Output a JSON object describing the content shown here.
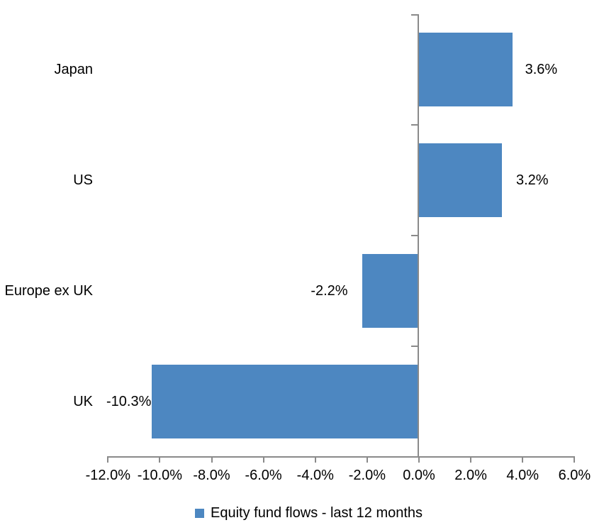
{
  "chart_data": {
    "type": "bar",
    "orientation": "horizontal",
    "title": "",
    "categories": [
      "Japan",
      "US",
      "Europe ex UK",
      "UK"
    ],
    "series": [
      {
        "name": "Equity fund flows - last 12 months",
        "values": [
          3.6,
          3.2,
          -2.2,
          -10.3
        ],
        "data_labels": [
          "3.6%",
          "3.2%",
          "-2.2%",
          "-10.3%"
        ]
      }
    ],
    "x_axis": {
      "min": -12,
      "max": 6,
      "ticks": [
        {
          "value": -12,
          "label": "-12.0%"
        },
        {
          "value": -10,
          "label": "-10.0%"
        },
        {
          "value": -8,
          "label": "-8.0%"
        },
        {
          "value": -6,
          "label": "-6.0%"
        },
        {
          "value": -4,
          "label": "-4.0%"
        },
        {
          "value": -2,
          "label": "-2.0%"
        },
        {
          "value": 0,
          "label": "0.0%"
        },
        {
          "value": 2,
          "label": "2.0%"
        },
        {
          "value": 4,
          "label": "4.0%"
        },
        {
          "value": 6,
          "label": "6.0%"
        }
      ]
    },
    "legend": {
      "position": "bottom",
      "entries": [
        {
          "label": "Equity fund flows - last 12 months",
          "swatch": "square"
        }
      ]
    },
    "grid": "off",
    "colors": {
      "bar": "#4D87C1",
      "axis": "#8A8A8A",
      "text": "#000000",
      "background": "#FFFFFF"
    }
  }
}
